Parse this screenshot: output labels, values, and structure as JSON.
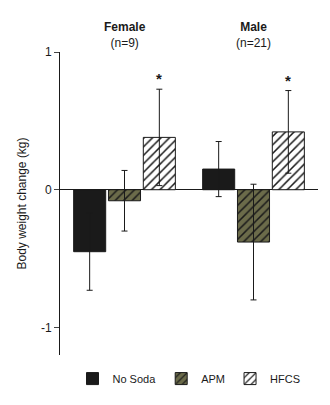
{
  "chart_data": {
    "type": "bar",
    "categories": [
      "Female",
      "Male"
    ],
    "subtitles": [
      "(n=9)",
      "(n=21)"
    ],
    "series": [
      {
        "name": "No Soda",
        "color": "#1a1a1a",
        "marker": "solid",
        "values": [
          -0.45,
          0.15
        ],
        "errors": [
          0.28,
          0.2
        ],
        "significance": [
          null,
          null
        ]
      },
      {
        "name": "APM",
        "color": "#6b6b4a",
        "marker": "hatched",
        "values": [
          -0.08,
          -0.38
        ],
        "errors": [
          0.22,
          0.42
        ],
        "significance": [
          null,
          null
        ]
      },
      {
        "name": "HFCS",
        "color": "#ffffff",
        "marker": "hatched",
        "values": [
          0.38,
          0.42
        ],
        "errors": [
          0.35,
          0.3
        ],
        "significance": [
          "*",
          "*"
        ]
      }
    ],
    "ylabel": "Body weight change (kg)",
    "ylim": [
      -1.2,
      1.0
    ],
    "yticks": [
      -1,
      0,
      1
    ],
    "grid": false,
    "legend": "bottom"
  }
}
